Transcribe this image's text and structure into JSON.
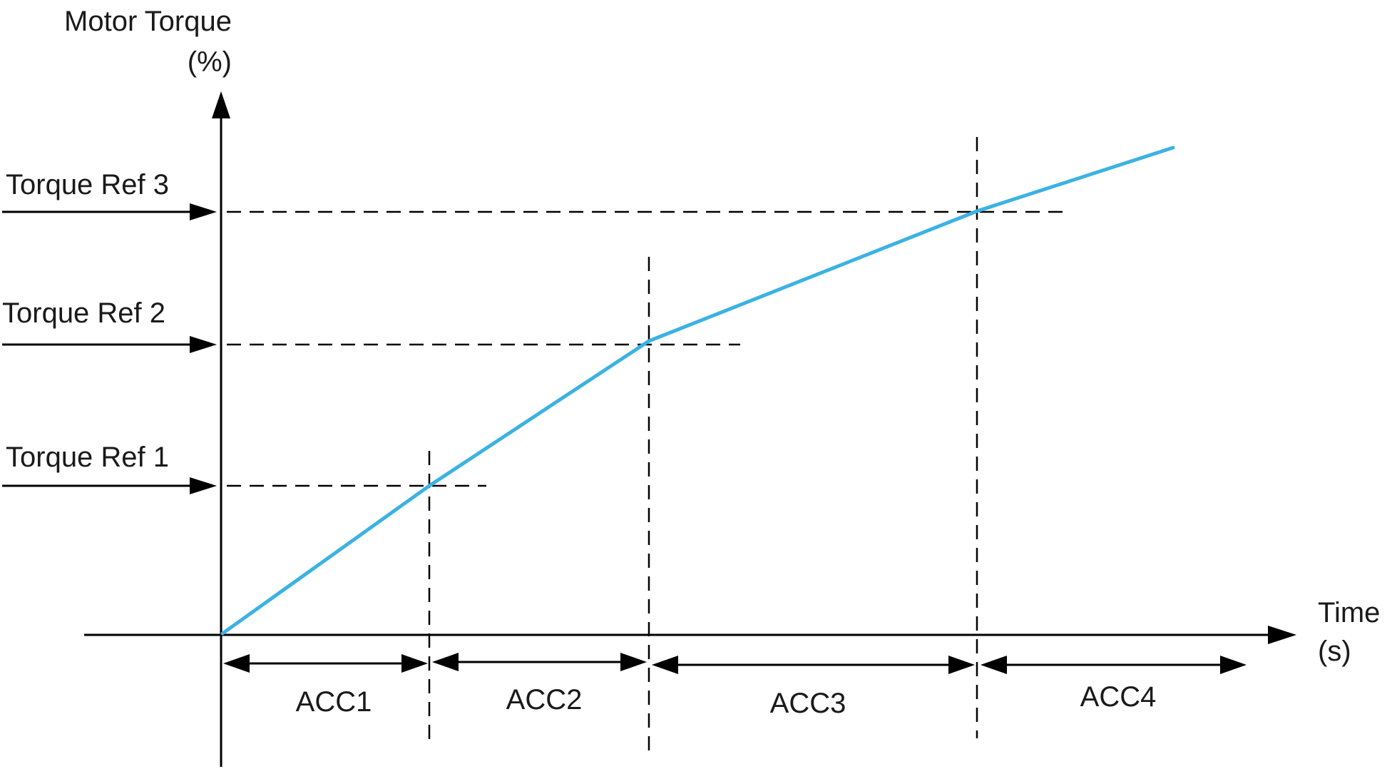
{
  "y_axis": {
    "label_line1": "Motor Torque",
    "label_line2": "(%)"
  },
  "x_axis": {
    "label_line1": "Time",
    "label_line2": "(s)"
  },
  "torque_refs": [
    {
      "label": "Torque Ref 1"
    },
    {
      "label": "Torque Ref 2"
    },
    {
      "label": "Torque Ref 3"
    }
  ],
  "acc_segments": [
    {
      "label": "ACC1"
    },
    {
      "label": "ACC2"
    },
    {
      "label": "ACC3"
    },
    {
      "label": "ACC4"
    }
  ],
  "colors": {
    "curve": "#3cb2e2",
    "lines": "#000000"
  }
}
